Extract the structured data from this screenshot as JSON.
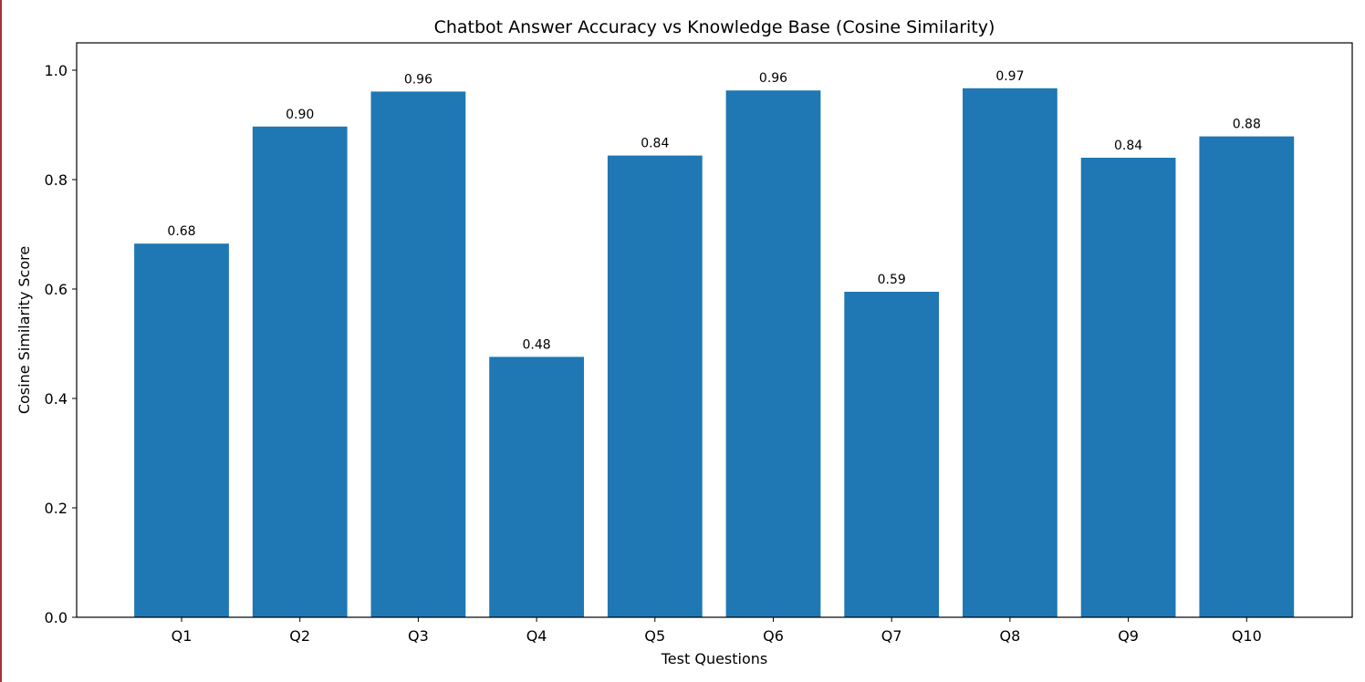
{
  "chart_data": {
    "type": "bar",
    "title": "Chatbot Answer Accuracy vs Knowledge Base (Cosine Similarity)",
    "xlabel": "Test Questions",
    "ylabel": "Cosine Similarity Score",
    "categories": [
      "Q1",
      "Q2",
      "Q3",
      "Q4",
      "Q5",
      "Q6",
      "Q7",
      "Q8",
      "Q9",
      "Q10"
    ],
    "values": [
      0.683,
      0.897,
      0.961,
      0.476,
      0.844,
      0.963,
      0.595,
      0.967,
      0.84,
      0.879
    ],
    "value_labels": [
      "0.68",
      "0.90",
      "0.96",
      "0.48",
      "0.84",
      "0.96",
      "0.59",
      "0.97",
      "0.84",
      "0.88"
    ],
    "ylim": [
      0,
      1.05
    ],
    "yticks": [
      0.0,
      0.2,
      0.4,
      0.6,
      0.8,
      1.0
    ],
    "ytick_labels": [
      "0.0",
      "0.2",
      "0.4",
      "0.6",
      "0.8",
      "1.0"
    ],
    "bar_color": "#1f77b4",
    "grid": false,
    "legend": "none"
  }
}
